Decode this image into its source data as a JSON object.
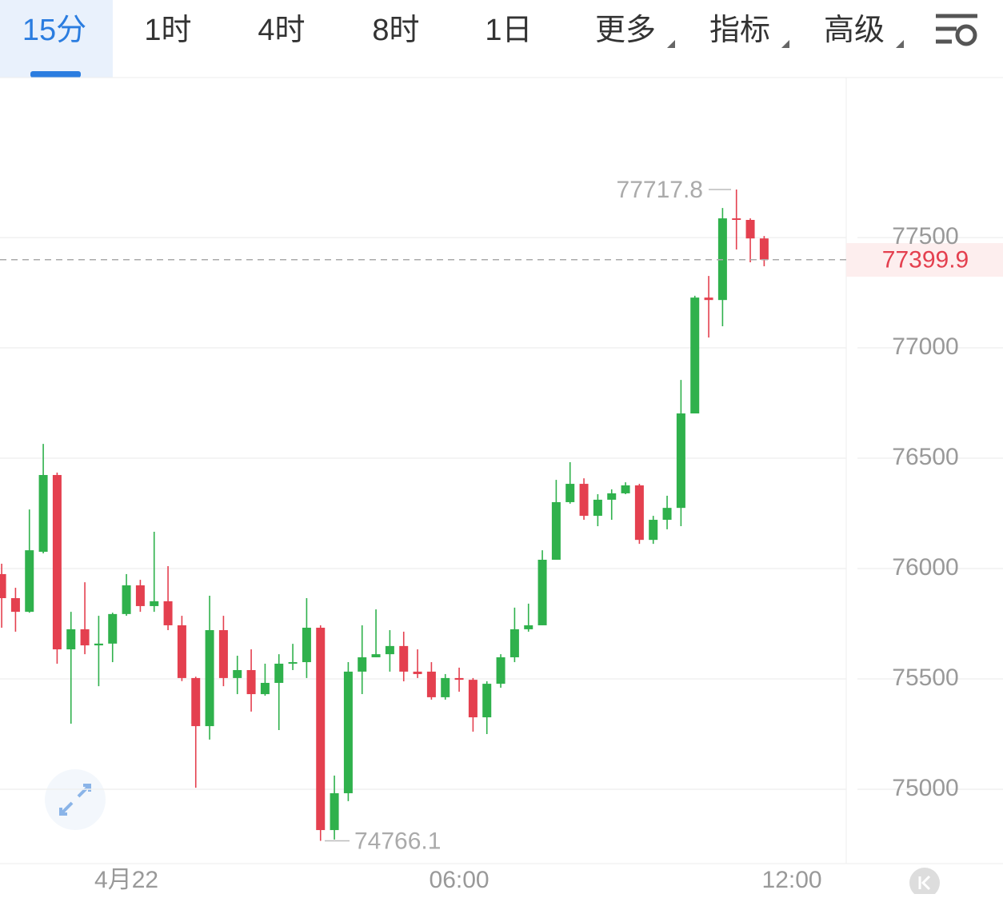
{
  "tabs": [
    "15分",
    "1时",
    "4时",
    "8时",
    "1日",
    "更多",
    "指标",
    "高级"
  ],
  "chart_data": {
    "type": "candlestick",
    "x": [
      -2.25,
      -2,
      -1.75,
      -1.5,
      -1.25,
      -1,
      -0.75,
      -0.5,
      -0.25,
      0,
      0.25,
      0.5,
      0.75,
      1,
      1.25,
      1.5,
      1.75,
      2,
      2.25,
      2.5,
      2.75,
      3,
      3.25,
      3.5,
      3.75,
      4,
      4.25,
      4.5,
      4.75,
      5,
      5.25,
      5.5,
      5.75,
      6,
      6.25,
      6.5,
      6.75,
      7,
      7.25,
      7.5,
      7.75,
      8,
      8.25,
      8.5,
      8.75,
      9,
      9.25,
      9.5,
      9.75,
      10,
      10.25,
      10.5,
      10.75,
      11,
      11.25,
      11.5
    ],
    "open": [
      75975,
      75866,
      75804,
      76076,
      76424,
      75634,
      75725,
      75652,
      75660,
      75794,
      75924,
      75830,
      75852,
      75743,
      75504,
      75286,
      75721,
      75504,
      75540,
      75431,
      75482,
      75569,
      75576,
      75732,
      74815,
      74982,
      75533,
      75598,
      75612,
      75649,
      75533,
      75533,
      75417,
      75504,
      75496,
      75326,
      75478,
      75598,
      75725,
      75743,
      76040,
      76301,
      76384,
      76239,
      76312,
      76341,
      76377,
      76130,
      76221,
      76275,
      76703,
      77228,
      77217,
      77587,
      77580,
      77496
    ],
    "high": [
      76022,
      75913,
      76268,
      76565,
      76435,
      75804,
      75938,
      75786,
      75800,
      75975,
      75949,
      76167,
      76011,
      75786,
      75510,
      75877,
      75786,
      75605,
      75634,
      75569,
      75612,
      75659,
      75866,
      75743,
      75062,
      75576,
      75743,
      75815,
      75721,
      75714,
      75634,
      75576,
      75522,
      75551,
      75504,
      75489,
      75612,
      75823,
      75841,
      76083,
      76402,
      76482,
      76409,
      76337,
      76359,
      76391,
      76384,
      76239,
      76330,
      76855,
      77236,
      77326,
      77634,
      77717.8,
      77587,
      77507
    ],
    "low": [
      75732,
      75714,
      75800,
      76069,
      75569,
      75297,
      75612,
      75467,
      75576,
      75786,
      75804,
      75804,
      75721,
      75490,
      75007,
      75225,
      75467,
      75431,
      75352,
      75424,
      75268,
      75540,
      75504,
      74766.1,
      74772,
      74946,
      75431,
      75598,
      75533,
      75489,
      75504,
      75406,
      75406,
      75442,
      75261,
      75250,
      75460,
      75576,
      75714,
      75743,
      76040,
      76294,
      76221,
      76192,
      76221,
      76337,
      76112,
      76112,
      76178,
      76192,
      76703,
      77047,
      77098,
      77446,
      77388,
      77370
    ],
    "close": [
      75866,
      75804,
      76083,
      76424,
      75634,
      75725,
      75652,
      75660,
      75794,
      75924,
      75830,
      75852,
      75743,
      75504,
      75286,
      75721,
      75504,
      75540,
      75431,
      75482,
      75569,
      75576,
      75732,
      74815,
      74982,
      75533,
      75598,
      75612,
      75649,
      75533,
      75522,
      75417,
      75504,
      75496,
      75326,
      75478,
      75598,
      75725,
      75743,
      76040,
      76301,
      76384,
      76239,
      76312,
      76341,
      76377,
      76130,
      76221,
      76275,
      76703,
      77228,
      77217,
      77587,
      77580,
      77496,
      77399.9
    ],
    "up_color": "#2fb14c",
    "down_color": "#e4404f",
    "xlim": [
      -2.28,
      12.98
    ],
    "xticks": [
      {
        "value": 0,
        "label": "4月22"
      },
      {
        "value": 6,
        "label": "06:00"
      },
      {
        "value": 12,
        "label": "12:00"
      }
    ],
    "ylim": [
      74663,
      78225
    ],
    "yticks": [
      75000,
      75500,
      76000,
      76500,
      77000,
      77500
    ],
    "grid": true,
    "last_price": 77399.9,
    "max_annotation": 77717.8,
    "min_annotation": 74766.1
  }
}
